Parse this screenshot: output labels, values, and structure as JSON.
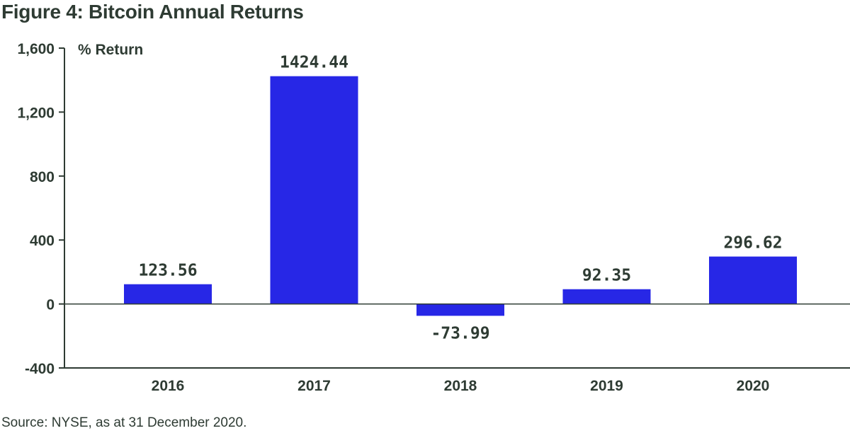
{
  "chart_data": {
    "type": "bar",
    "title": "Figure 4: Bitcoin Annual Returns",
    "ylabel": "% Return",
    "xlabel": "",
    "categories": [
      "2016",
      "2017",
      "2018",
      "2019",
      "2020"
    ],
    "values": [
      123.56,
      1424.44,
      -73.99,
      92.35,
      296.62
    ],
    "value_labels": [
      "123.56",
      "1424.44",
      "-73.99",
      "92.35",
      "296.62"
    ],
    "ylim": [
      -400,
      1600
    ],
    "yticks": [
      -400,
      0,
      400,
      800,
      1200,
      1600
    ],
    "ytick_labels": [
      "-400",
      "0",
      "400",
      "800",
      "1,200",
      "1,600"
    ],
    "grid": false,
    "legend": "none",
    "source": "Source: NYSE, as at 31 December 2020."
  },
  "colors": {
    "bar": "#2727e6",
    "axis": "#2e3b33",
    "text": "#2e3b33"
  }
}
